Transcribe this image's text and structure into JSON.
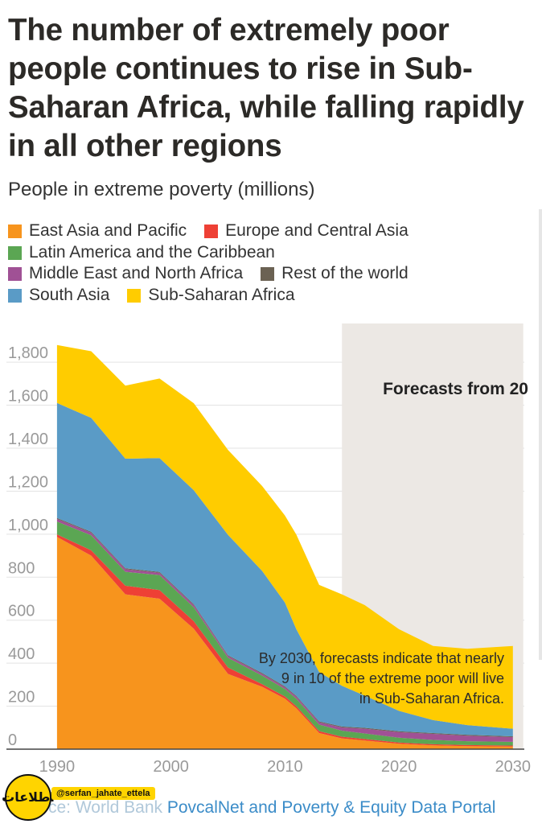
{
  "title": "The number of extremely poor people continues to rise in Sub-Saharan Africa, while falling rapidly in all other regions",
  "subtitle": "People in extreme poverty (millions)",
  "legend": [
    {
      "label": "East Asia and Pacific",
      "color": "#f7941d"
    },
    {
      "label": "Europe and Central Asia",
      "color": "#ee4035"
    },
    {
      "label": "Latin America and the Caribbean",
      "color": "#5ba653"
    },
    {
      "label": "Middle East and North Africa",
      "color": "#a05195"
    },
    {
      "label": "Rest of the world",
      "color": "#6b6253"
    },
    {
      "label": "South Asia",
      "color": "#5a9bc6"
    },
    {
      "label": "Sub-Saharan Africa",
      "color": "#ffcc00"
    }
  ],
  "forecast_label": "Forecasts from 20",
  "annotation": [
    "By 2030, forecasts indicate that nearly",
    "9 in 10 of the extreme poor will live",
    "in Sub-Saharan Africa."
  ],
  "watermark": {
    "logo_text": "اطلاعات",
    "handle": "@serfan_jahate_ettela"
  },
  "source": {
    "prefix": "ce: World Bank",
    "text": "PovcalNet and Poverty & Equity Data Portal"
  },
  "chart_data": {
    "type": "area",
    "stacked": true,
    "x": [
      1990,
      1993,
      1996,
      1999,
      2002,
      2005,
      2008,
      2010,
      2011,
      2013,
      2015,
      2017,
      2020,
      2023,
      2026,
      2030
    ],
    "xticks": [
      1990,
      2000,
      2010,
      2020,
      2030
    ],
    "yticks": [
      0,
      200,
      400,
      600,
      800,
      1000,
      1200,
      1400,
      1600,
      1800
    ],
    "ylim": [
      0,
      1950
    ],
    "xlim": [
      1985,
      2031
    ],
    "forecast_start": 2015,
    "series": [
      {
        "name": "East Asia and Pacific",
        "color": "#f7941d",
        "values": [
          987,
          900,
          720,
          700,
          560,
          350,
          290,
          235,
          190,
          75,
          50,
          40,
          25,
          18,
          14,
          12
        ]
      },
      {
        "name": "Europe and Central Asia",
        "color": "#ee4035",
        "values": [
          12,
          25,
          40,
          40,
          35,
          30,
          12,
          10,
          10,
          9,
          8,
          7,
          6,
          5,
          5,
          5
        ]
      },
      {
        "name": "Latin America and the Caribbean",
        "color": "#5ba653",
        "values": [
          60,
          70,
          65,
          70,
          65,
          45,
          40,
          35,
          35,
          30,
          28,
          26,
          22,
          20,
          18,
          17
        ]
      },
      {
        "name": "Middle East and North Africa",
        "color": "#a05195",
        "values": [
          12,
          12,
          12,
          10,
          10,
          8,
          8,
          8,
          9,
          11,
          15,
          22,
          26,
          28,
          26,
          22
        ]
      },
      {
        "name": "Rest of the world",
        "color": "#6b6253",
        "values": [
          4,
          4,
          4,
          4,
          4,
          4,
          4,
          4,
          4,
          4,
          4,
          4,
          4,
          4,
          4,
          4
        ]
      },
      {
        "name": "South Asia",
        "color": "#5a9bc6",
        "values": [
          535,
          530,
          510,
          530,
          530,
          560,
          475,
          390,
          310,
          230,
          190,
          150,
          95,
          60,
          45,
          35
        ]
      },
      {
        "name": "Sub-Saharan Africa",
        "color": "#ffcc00",
        "values": [
          270,
          310,
          340,
          370,
          405,
          395,
          395,
          405,
          440,
          405,
          425,
          421,
          380,
          345,
          355,
          385
        ]
      }
    ]
  }
}
